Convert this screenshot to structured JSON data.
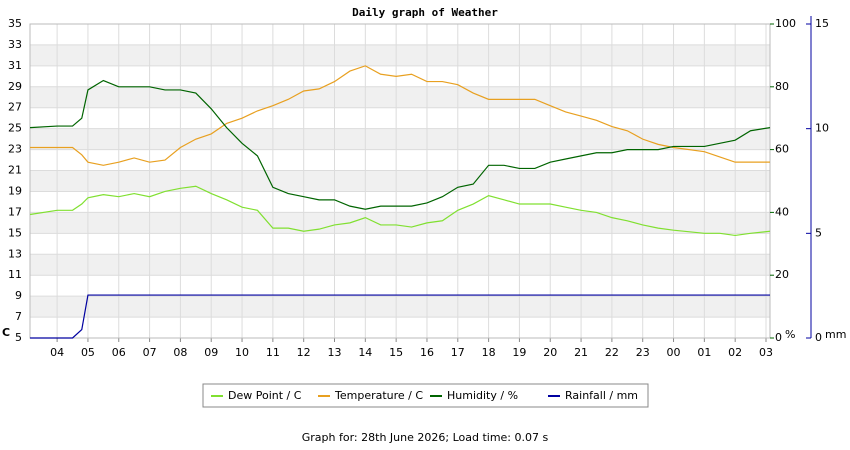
{
  "chart_data": {
    "type": "line",
    "title": "Daily graph of Weather",
    "footer": "Graph for: 28th June 2026; Load time: 0.07 s",
    "ylabel": "C",
    "y2label": "%",
    "y3label": "mm",
    "x": [
      3.12,
      4,
      4.5,
      4.8,
      5,
      5.5,
      6,
      6.5,
      7,
      7.5,
      8,
      8.5,
      9,
      9.5,
      10,
      10.5,
      11,
      11.5,
      12,
      12.5,
      13,
      13.5,
      14,
      14.5,
      15,
      15.5,
      16,
      16.5,
      17,
      17.5,
      18,
      18.5,
      19,
      19.5,
      20,
      20.5,
      21,
      21.5,
      22,
      22.5,
      23,
      23.5,
      24,
      25,
      25.5,
      26,
      26.5,
      27.13
    ],
    "xlim": [
      3.12,
      27.13
    ],
    "xticks": [
      {
        "value": 4,
        "label": "04"
      },
      {
        "value": 5,
        "label": "05"
      },
      {
        "value": 6,
        "label": "06"
      },
      {
        "value": 7,
        "label": "07"
      },
      {
        "value": 8,
        "label": "08"
      },
      {
        "value": 9,
        "label": "09"
      },
      10,
      11,
      12,
      13,
      14,
      15,
      16,
      17,
      18,
      19,
      20,
      21,
      22,
      23,
      {
        "value": 24,
        "label": "00"
      },
      {
        "value": 25,
        "label": "01"
      },
      {
        "value": 26,
        "label": "02"
      },
      {
        "value": 27,
        "label": "03"
      }
    ],
    "ylim": [
      5,
      35
    ],
    "yticks": [
      5,
      7,
      9,
      11,
      13,
      15,
      17,
      19,
      21,
      23,
      25,
      27,
      29,
      31,
      33,
      35
    ],
    "y2lim": [
      0,
      100
    ],
    "y2ticks": [
      0,
      20,
      40,
      60,
      80,
      100
    ],
    "y3lim": [
      0,
      15
    ],
    "y3ticks": [
      0,
      5,
      10,
      15
    ],
    "grid": true,
    "legend": "bottom",
    "series": [
      {
        "name": "Dew Point / C",
        "color": "#80e030",
        "axis": "y",
        "values": [
          16.8,
          17.2,
          17.2,
          17.8,
          18.4,
          18.7,
          18.5,
          18.8,
          18.5,
          19,
          19.3,
          19.5,
          18.8,
          18.2,
          17.5,
          17.2,
          15.5,
          15.5,
          15.2,
          15.4,
          15.8,
          16,
          16.5,
          15.8,
          15.8,
          15.6,
          16,
          16.2,
          17.2,
          17.8,
          18.6,
          18.2,
          17.8,
          17.8,
          17.8,
          17.5,
          17.2,
          17,
          16.5,
          16.2,
          15.8,
          15.5,
          15.3,
          15,
          15,
          14.8,
          15,
          15.2
        ]
      },
      {
        "name": "Temperature / C",
        "color": "#e8a020",
        "axis": "y",
        "values": [
          23.2,
          23.2,
          23.2,
          22.5,
          21.8,
          21.5,
          21.8,
          22.2,
          21.8,
          22,
          23.2,
          24,
          24.5,
          25.5,
          26,
          26.7,
          27.2,
          27.8,
          28.6,
          28.8,
          29.5,
          30.5,
          31,
          30.2,
          30,
          30.2,
          29.5,
          29.5,
          29.2,
          28.4,
          27.8,
          27.8,
          27.8,
          27.8,
          27.2,
          26.6,
          26.2,
          25.8,
          25.2,
          24.8,
          24,
          23.5,
          23.2,
          22.8,
          22.3,
          21.8,
          21.8,
          21.8
        ]
      },
      {
        "name": "Humidity / %",
        "color": "#006400",
        "axis": "y2",
        "values": [
          67,
          67.5,
          67.5,
          70,
          79,
          82,
          80,
          80,
          80,
          79,
          79,
          78,
          73,
          67,
          62,
          58,
          48,
          46,
          45,
          44,
          44,
          42,
          41,
          42,
          42,
          42,
          43,
          45,
          48,
          49,
          55,
          55,
          54,
          54,
          56,
          57,
          58,
          59,
          59,
          60,
          60,
          60,
          61,
          61,
          62,
          63,
          66,
          67
        ]
      },
      {
        "name": "Rainfall / mm",
        "color": "#0000a0",
        "axis": "y3",
        "values": [
          0,
          0,
          0,
          0.4,
          2.05,
          2.05,
          2.05,
          2.05,
          2.05,
          2.05,
          2.05,
          2.05,
          2.05,
          2.05,
          2.05,
          2.05,
          2.05,
          2.05,
          2.05,
          2.05,
          2.05,
          2.05,
          2.05,
          2.05,
          2.05,
          2.05,
          2.05,
          2.05,
          2.05,
          2.05,
          2.05,
          2.05,
          2.05,
          2.05,
          2.05,
          2.05,
          2.05,
          2.05,
          2.05,
          2.05,
          2.05,
          2.05,
          2.05,
          2.05,
          2.05,
          2.05,
          2.05,
          2.05
        ]
      }
    ]
  }
}
